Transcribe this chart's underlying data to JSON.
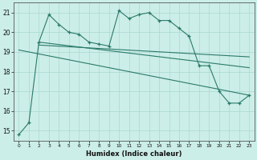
{
  "xlabel": "Humidex (Indice chaleur)",
  "bg_color": "#cceee8",
  "line_color": "#2a7a6a",
  "xlim": [
    -0.5,
    23.5
  ],
  "ylim": [
    14.5,
    21.5
  ],
  "yticks": [
    15,
    16,
    17,
    18,
    19,
    20,
    21
  ],
  "xticks": [
    0,
    1,
    2,
    3,
    4,
    5,
    6,
    7,
    8,
    9,
    10,
    11,
    12,
    13,
    14,
    15,
    16,
    17,
    18,
    19,
    20,
    21,
    22,
    23
  ],
  "series1_x": [
    0,
    1,
    2,
    3,
    4,
    5,
    6,
    7,
    8,
    9,
    10,
    11,
    12,
    13,
    14,
    15,
    16,
    17,
    18,
    19,
    20,
    21,
    22,
    23
  ],
  "series1_y": [
    14.8,
    15.4,
    19.5,
    20.9,
    20.4,
    20.0,
    19.9,
    19.5,
    19.4,
    19.3,
    21.1,
    20.7,
    20.9,
    21.0,
    20.6,
    20.6,
    20.2,
    19.8,
    18.3,
    18.3,
    17.0,
    16.4,
    16.4,
    16.8
  ],
  "line1_x": [
    2,
    23
  ],
  "line1_y": [
    19.5,
    18.2
  ],
  "line2_x": [
    2,
    23
  ],
  "line2_y": [
    19.35,
    18.75
  ],
  "line3_x": [
    0,
    23
  ],
  "line3_y": [
    19.1,
    16.8
  ]
}
